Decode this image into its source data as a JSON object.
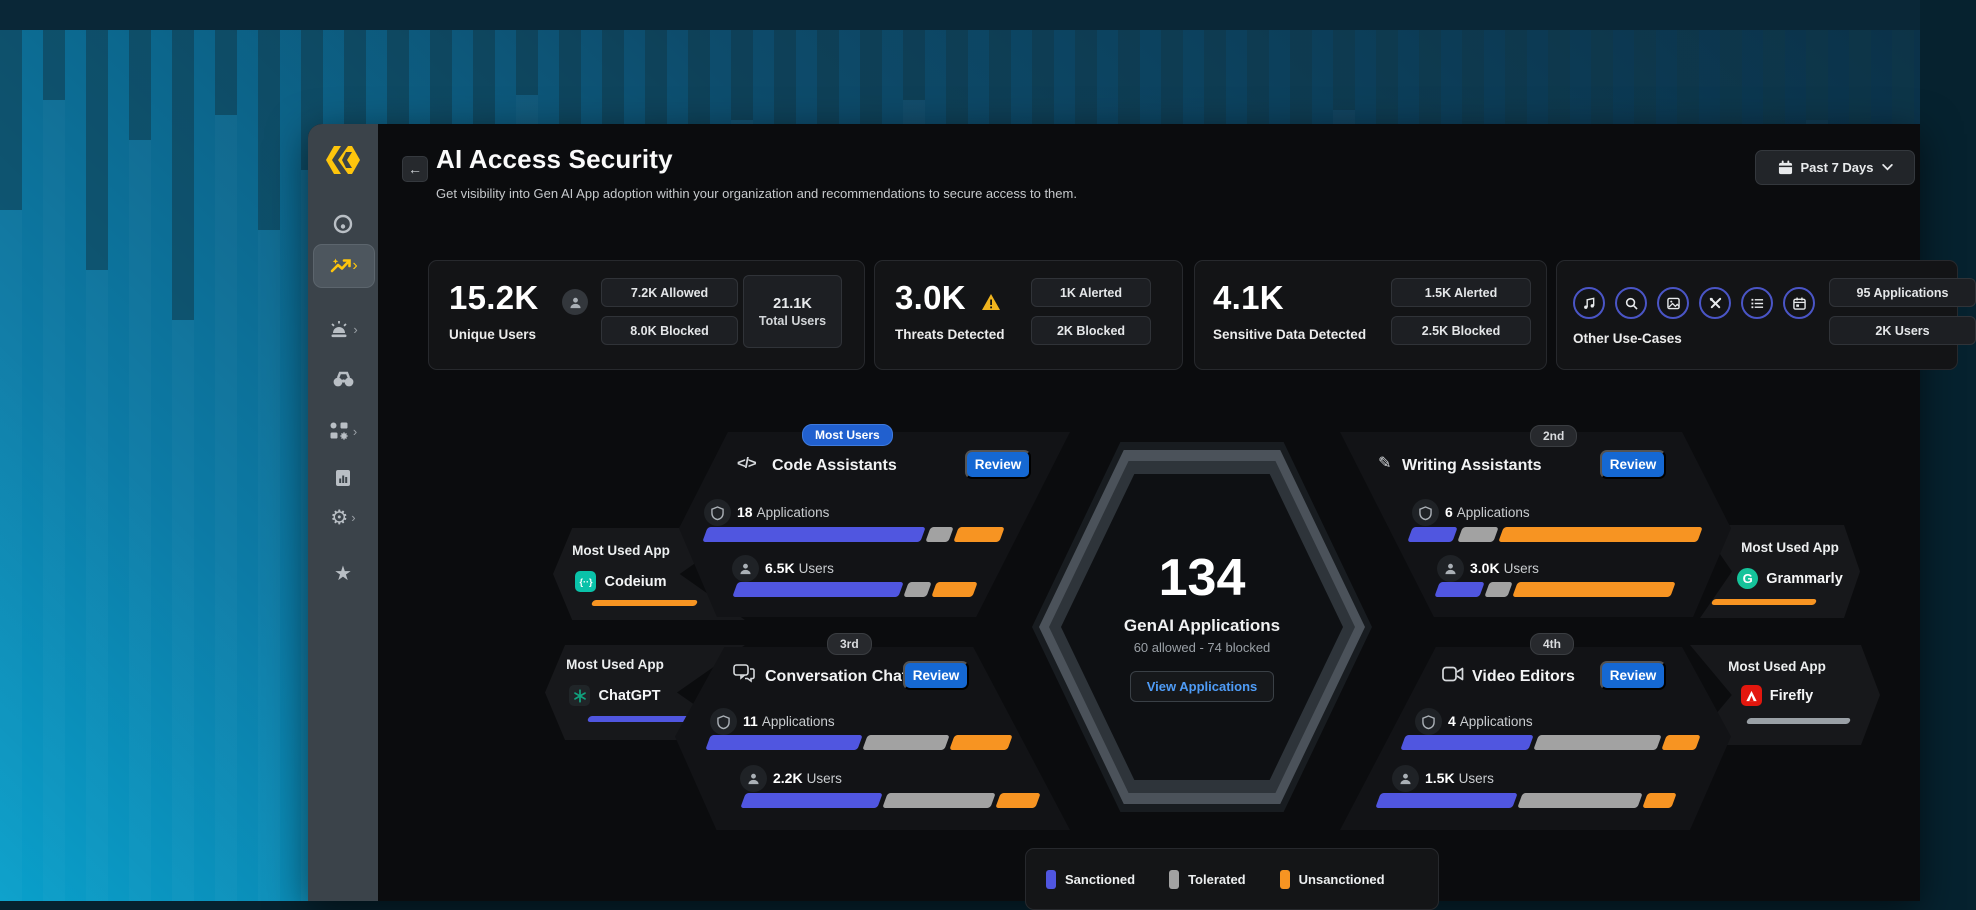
{
  "header": {
    "back": "←",
    "title": "AI Access Security",
    "subtitle": "Get visibility into Gen AI App adoption within your organization and recommendations to secure access to them.",
    "time_range": "Past 7 Days"
  },
  "sidebar": {
    "items": [
      {
        "icon": "radar-icon",
        "active": false,
        "chevron": false
      },
      {
        "icon": "trend-icon",
        "active": true,
        "chevron": true
      },
      {
        "icon": "siren-icon",
        "active": false,
        "chevron": true
      },
      {
        "icon": "binoculars-icon",
        "active": false,
        "chevron": false
      },
      {
        "icon": "apps-grid-icon",
        "active": false,
        "chevron": true
      },
      {
        "icon": "report-icon",
        "active": false,
        "chevron": false
      },
      {
        "icon": "gear-icon",
        "active": false,
        "chevron": true
      },
      {
        "icon": "star-icon",
        "active": false,
        "chevron": false
      }
    ]
  },
  "stats": [
    {
      "value": "15.2K",
      "label": "Unique Users",
      "icon": "user-icon",
      "pills": [
        "7.2K Allowed",
        "8.0K Blocked"
      ],
      "total": {
        "value": "21.1K",
        "label": "Total Users"
      }
    },
    {
      "value": "3.0K",
      "label": "Threats Detected",
      "icon": "warning-icon",
      "pills": [
        "1K Alerted",
        "2K Blocked"
      ]
    },
    {
      "value": "4.1K",
      "label": "Sensitive Data Detected",
      "pills": [
        "1.5K Alerted",
        "2.5K Blocked"
      ]
    },
    {
      "label": "Other Use-Cases",
      "icons": [
        "music-icon",
        "search-icon",
        "image-icon",
        "tools-icon",
        "list-icon",
        "calendar-icon"
      ],
      "pills": [
        "95 Applications",
        "2K Users"
      ]
    }
  ],
  "center": {
    "value": "134",
    "label": "GenAI Applications",
    "sub": "60 allowed - 74 blocked",
    "button": "View Applications"
  },
  "categories": [
    {
      "badge": "Most Users",
      "badge_style": "blue",
      "icon": "code-icon",
      "name": "Code Assistants",
      "review_label": "Review",
      "apps_count": "18",
      "apps_label": "Applications",
      "users_count": "6.5K",
      "users_label": "Users",
      "bars": {
        "apps": {
          "sanctioned": 76,
          "tolerated": 8,
          "unsanctioned": 16
        },
        "users": {
          "sanctioned": 72,
          "tolerated": 10,
          "unsanctioned": 18
        }
      }
    },
    {
      "badge": "2nd",
      "badge_style": "dark",
      "icon": "pen-icon",
      "name": "Writing Assistants",
      "review_label": "Review",
      "apps_count": "6",
      "apps_label": "Applications",
      "users_count": "3.0K",
      "users_label": "Users",
      "bars": {
        "apps": {
          "sanctioned": 16,
          "tolerated": 13,
          "unsanctioned": 71
        },
        "users": {
          "sanctioned": 20,
          "tolerated": 10,
          "unsanctioned": 70
        }
      }
    },
    {
      "badge": "3rd",
      "badge_style": "dark",
      "icon": "chat-icon",
      "name": "Conversation Chats",
      "review_label": "Review",
      "apps_count": "11",
      "apps_label": "Applications",
      "users_count": "2.2K",
      "users_label": "Users",
      "bars": {
        "apps": {
          "sanctioned": 52,
          "tolerated": 28,
          "unsanctioned": 20
        },
        "users": {
          "sanctioned": 48,
          "tolerated": 38,
          "unsanctioned": 14
        }
      }
    },
    {
      "badge": "4th",
      "badge_style": "dark",
      "icon": "video-icon",
      "name": "Video Editors",
      "review_label": "Review",
      "apps_count": "4",
      "apps_label": "Applications",
      "users_count": "1.5K",
      "users_label": "Users",
      "bars": {
        "apps": {
          "sanctioned": 45,
          "tolerated": 43,
          "unsanctioned": 12
        },
        "users": {
          "sanctioned": 48,
          "tolerated": 42,
          "unsanctioned": 10
        }
      }
    }
  ],
  "most_used_apps": [
    {
      "label": "Most Used App",
      "name": "Codeium",
      "icon": "codeium-icon",
      "underline": "#f79422"
    },
    {
      "label": "Most Used App",
      "name": "ChatGPT",
      "icon": "chatgpt-icon",
      "underline": "#5056e0"
    },
    {
      "label": "Most Used App",
      "name": "Grammarly",
      "icon": "grammarly-icon",
      "underline": "#f79422"
    },
    {
      "label": "Most Used App",
      "name": "Firefly",
      "icon": "firefly-icon",
      "underline": "#9aa0a6"
    }
  ],
  "legend": [
    {
      "label": "Sanctioned",
      "color": "#5056e0"
    },
    {
      "label": "Tolerated",
      "color": "#a2a2a2"
    },
    {
      "label": "Unsanctioned",
      "color": "#f79422"
    }
  ],
  "colors": {
    "sanctioned": "#5056e0",
    "tolerated": "#a2a2a2",
    "unsanctioned": "#f79422",
    "accent_blue": "#1568d3",
    "warning_yellow": "#f0b41e",
    "logo_yellow": "#fec50c"
  }
}
